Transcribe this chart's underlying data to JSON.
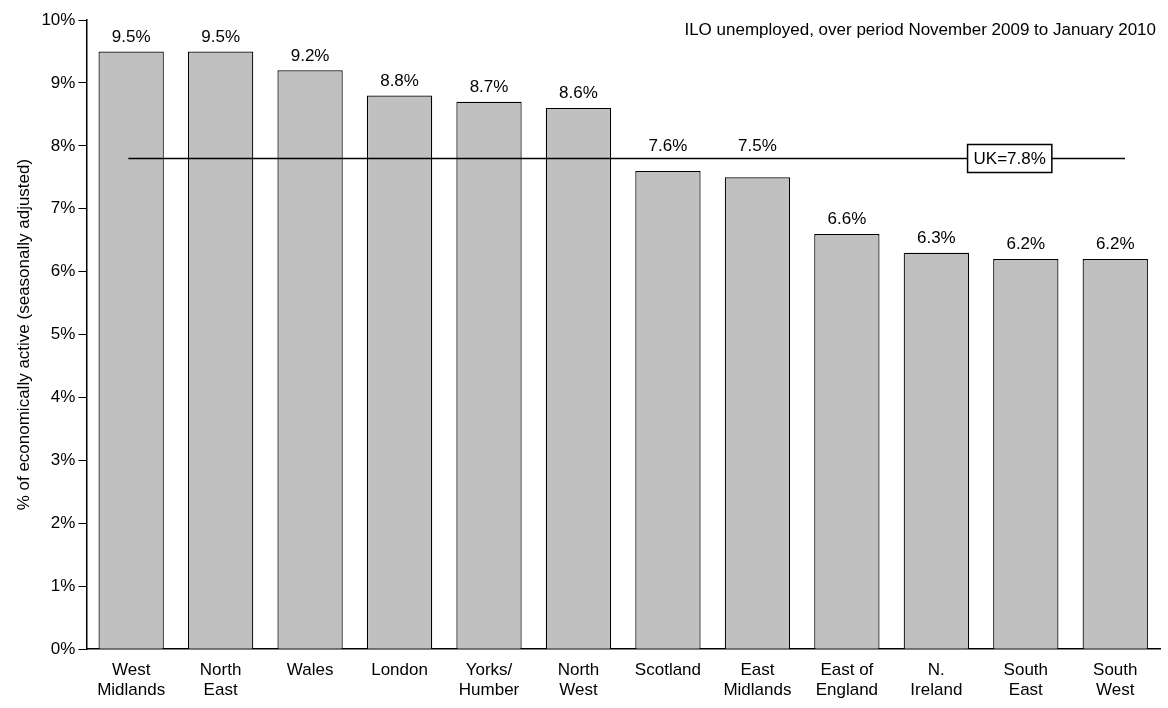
{
  "chart_data": {
    "type": "bar",
    "ylabel": "% of economically active (seasonally adjusted)",
    "categories": [
      "West\nMidlands",
      "North\nEast",
      "Wales",
      "London",
      "Yorks/\nHumber",
      "North\nWest",
      "Scotland",
      "East\nMidlands",
      "East of\nEngland",
      "N.\nIreland",
      "South\nEast",
      "South\nWest"
    ],
    "values": [
      9.5,
      9.5,
      9.2,
      8.8,
      8.7,
      8.6,
      7.6,
      7.5,
      6.6,
      6.3,
      6.2,
      6.2
    ],
    "value_labels": [
      "9.5%",
      "9.5%",
      "9.2%",
      "8.8%",
      "8.7%",
      "8.6%",
      "7.6%",
      "7.5%",
      "6.6%",
      "6.3%",
      "6.2%",
      "6.2%"
    ],
    "color": "#c0c0c0",
    "ylim": [
      0,
      10
    ],
    "yticks": [
      {
        "value": 0,
        "label": "0%"
      },
      {
        "value": 1,
        "label": "1%"
      },
      {
        "value": 2,
        "label": "2%"
      },
      {
        "value": 3,
        "label": "3%"
      },
      {
        "value": 4,
        "label": "4%"
      },
      {
        "value": 5,
        "label": "5%"
      },
      {
        "value": 6,
        "label": "6%"
      },
      {
        "value": 7,
        "label": "7%"
      },
      {
        "value": 8,
        "label": "8%"
      },
      {
        "value": 9,
        "label": "9%"
      },
      {
        "value": 10,
        "label": "10%"
      }
    ],
    "ref_lines": [
      {
        "axis": "y",
        "value": 7.8,
        "label": "UK=7.8%",
        "color": "#000000"
      }
    ],
    "annotations": [
      "ILO unemployed, over period November 2009 to January 2010"
    ],
    "grid": false,
    "legend": false
  }
}
